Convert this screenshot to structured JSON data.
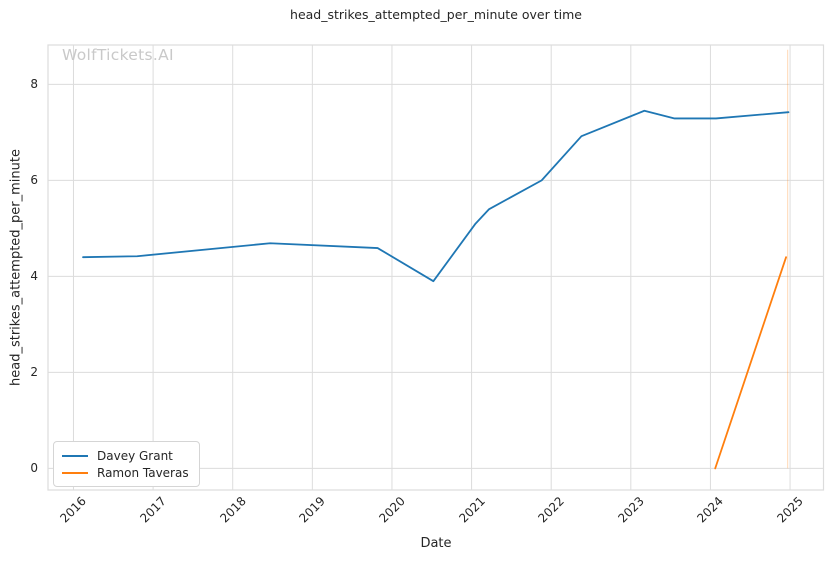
{
  "watermark": "WolfTickets.AI",
  "chart_data": {
    "type": "line",
    "title": "head_strikes_attempted_per_minute over time",
    "xlabel": "Date",
    "ylabel": "head_strikes_attempted_per_minute",
    "x_ticks": [
      "2016",
      "2017",
      "2018",
      "2019",
      "2020",
      "2021",
      "2022",
      "2023",
      "2024",
      "2025"
    ],
    "x_tick_values": [
      2016,
      2017,
      2018,
      2019,
      2020,
      2021,
      2022,
      2023,
      2024,
      2025
    ],
    "y_ticks": [
      "0",
      "2",
      "4",
      "6",
      "8"
    ],
    "y_tick_values": [
      0,
      2,
      4,
      6,
      8
    ],
    "xlim": [
      2015.68,
      2025.42
    ],
    "ylim": [
      -0.45,
      8.82
    ],
    "grid": true,
    "legend_position": "lower-left",
    "series": [
      {
        "name": "Davey Grant",
        "color": "#1f77b4",
        "points": [
          [
            2016.12,
            4.4
          ],
          [
            2016.8,
            4.42
          ],
          [
            2018.47,
            4.69
          ],
          [
            2019.82,
            4.59
          ],
          [
            2020.52,
            3.9
          ],
          [
            2021.05,
            5.1
          ],
          [
            2021.22,
            5.4
          ],
          [
            2021.88,
            6.0
          ],
          [
            2022.38,
            6.92
          ],
          [
            2023.17,
            7.45
          ],
          [
            2023.55,
            7.29
          ],
          [
            2024.07,
            7.29
          ],
          [
            2024.98,
            7.42
          ]
        ]
      },
      {
        "name": "Ramon Taveras",
        "color": "#ff7f0e",
        "points": [
          [
            2024.06,
            0.0
          ],
          [
            2024.95,
            4.4
          ]
        ]
      }
    ],
    "vline": {
      "x": 2024.97,
      "y0": 0,
      "y1": 8.72,
      "color": "#ff7f0e",
      "opacity": 0.3
    },
    "grid_color": "#dcdcdc",
    "background": "#ffffff"
  }
}
